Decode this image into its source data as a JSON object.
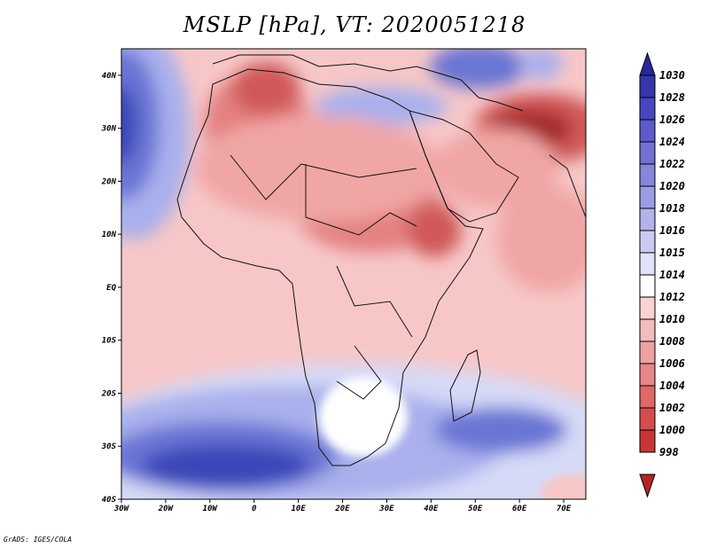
{
  "title": "MSLP [hPa], VT: 2020051218",
  "footer": "GrADS: IGES/COLA",
  "colors": {
    "blue_darkest": "#24309a",
    "blue_dark": "#3b47b8",
    "blue_mid": "#6b74d4",
    "blue_light": "#a9b0ec",
    "blue_pale": "#d6daf7",
    "neutral": "#ffffff",
    "red_pale": "#f7c7c7",
    "red_light": "#f1a6a6",
    "red_mid": "#e48181",
    "red_dark": "#d05858",
    "red_darkest": "#a52b2b"
  },
  "chart_data": {
    "type": "map",
    "variable": "MSLP",
    "units": "hPa",
    "valid_time": "2020051218",
    "lon_range": [
      -30,
      75
    ],
    "lat_range": [
      -40,
      45
    ],
    "x_ticks": [
      "30W",
      "20W",
      "10W",
      "0",
      "10E",
      "20E",
      "30E",
      "40E",
      "50E",
      "60E",
      "70E"
    ],
    "x_tick_values": [
      -30,
      -20,
      -10,
      0,
      10,
      20,
      30,
      40,
      50,
      60,
      70
    ],
    "y_ticks": [
      "40S",
      "30S",
      "20S",
      "10S",
      "EQ",
      "10N",
      "20N",
      "30N",
      "40N"
    ],
    "y_tick_values": [
      -40,
      -30,
      -20,
      -10,
      0,
      10,
      20,
      30,
      40
    ],
    "colorbar": {
      "labels": [
        "1030",
        "1028",
        "1026",
        "1024",
        "1022",
        "1020",
        "1018",
        "1016",
        "1015",
        "1014",
        "1012",
        "1010",
        "1008",
        "1006",
        "1004",
        "1002",
        "1000",
        "998"
      ],
      "fill_colors": [
        "#27279a",
        "#3535ad",
        "#4747bf",
        "#5b5bcb",
        "#7070d5",
        "#8686dc",
        "#9c9ce4",
        "#b3b3eb",
        "#cbcbf2",
        "#e2e2f8",
        "#ffffff",
        "#f9d2d2",
        "#f4bcbc",
        "#eea2a2",
        "#e78686",
        "#e06868",
        "#d64c4c",
        "#c83636",
        "#b52424"
      ]
    }
  }
}
